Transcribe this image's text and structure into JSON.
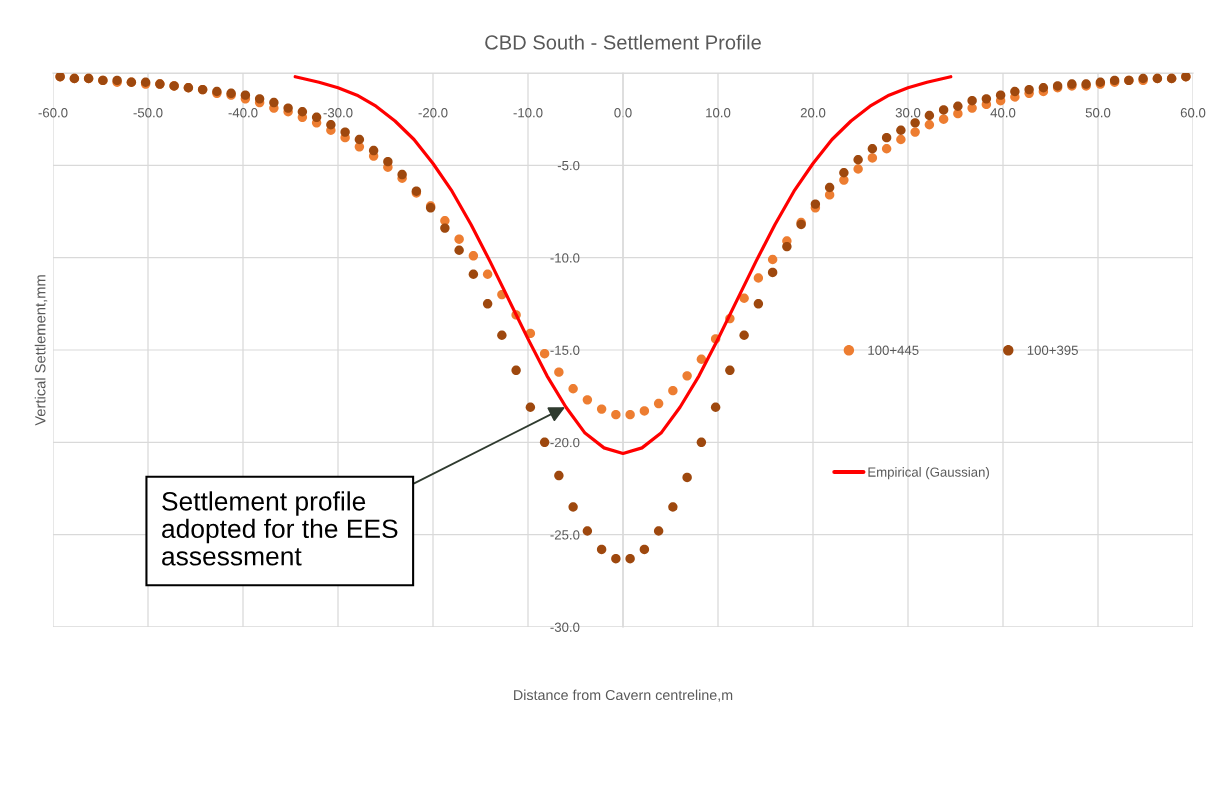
{
  "chart_data": {
    "type": "scatter",
    "title": "CBD South - Settlement Profile",
    "xlabel": "Distance from Cavern centreline,m",
    "ylabel": "Vertical Settlement,mm",
    "x": [
      -59.25,
      -57.75,
      -56.25,
      -54.75,
      -53.25,
      -51.75,
      -50.25,
      -48.75,
      -47.25,
      -45.75,
      -44.25,
      -42.75,
      -41.25,
      -39.75,
      -38.25,
      -36.75,
      -35.25,
      -33.75,
      -32.25,
      -30.75,
      -29.25,
      -27.75,
      -26.25,
      -24.75,
      -23.25,
      -21.75,
      -20.25,
      -18.75,
      -17.25,
      -15.75,
      -14.25,
      -12.75,
      -11.25,
      -9.75,
      -8.25,
      -6.75,
      -5.25,
      -3.75,
      -2.25,
      -0.75,
      0.75,
      2.25,
      3.75,
      5.25,
      6.75,
      8.25,
      9.75,
      11.25,
      12.75,
      14.25,
      15.75,
      17.25,
      18.75,
      20.25,
      21.75,
      23.25,
      24.75,
      26.25,
      27.75,
      29.25,
      30.75,
      32.25,
      33.75,
      35.25,
      36.75,
      38.25,
      39.75,
      41.25,
      42.75,
      44.25,
      45.75,
      47.25,
      48.75,
      50.25,
      51.75,
      53.25,
      54.75,
      56.25,
      57.75,
      59.25
    ],
    "series": [
      {
        "name": "100+445",
        "color": "#ED7D31",
        "values": [
          -0.2,
          -0.3,
          -0.3,
          -0.4,
          -0.5,
          -0.5,
          -0.6,
          -0.6,
          -0.7,
          -0.8,
          -0.9,
          -1.1,
          -1.2,
          -1.4,
          -1.6,
          -1.9,
          -2.1,
          -2.4,
          -2.7,
          -3.1,
          -3.5,
          -4.0,
          -4.5,
          -5.1,
          -5.7,
          -6.5,
          -7.2,
          -8.0,
          -9.0,
          -9.9,
          -10.9,
          -12.0,
          -13.1,
          -14.1,
          -15.2,
          -16.2,
          -17.1,
          -17.7,
          -18.2,
          -18.5,
          -18.5,
          -18.3,
          -17.9,
          -17.2,
          -16.4,
          -15.5,
          -14.4,
          -13.3,
          -12.2,
          -11.1,
          -10.1,
          -9.1,
          -8.1,
          -7.3,
          -6.6,
          -5.8,
          -5.2,
          -4.6,
          -4.1,
          -3.6,
          -3.2,
          -2.8,
          -2.5,
          -2.2,
          -1.9,
          -1.7,
          -1.5,
          -1.3,
          -1.1,
          -1.0,
          -0.8,
          -0.7,
          -0.7,
          -0.6,
          -0.5,
          -0.4,
          -0.4,
          -0.3,
          -0.3,
          -0.2
        ]
      },
      {
        "name": "100+395",
        "color": "#9E480E",
        "values": [
          -0.2,
          -0.3,
          -0.3,
          -0.4,
          -0.4,
          -0.5,
          -0.5,
          -0.6,
          -0.7,
          -0.8,
          -0.9,
          -1.0,
          -1.1,
          -1.2,
          -1.4,
          -1.6,
          -1.9,
          -2.1,
          -2.4,
          -2.8,
          -3.2,
          -3.6,
          -4.2,
          -4.8,
          -5.5,
          -6.4,
          -7.3,
          -8.4,
          -9.6,
          -10.9,
          -12.5,
          -14.2,
          -16.1,
          -18.1,
          -20.0,
          -21.8,
          -23.5,
          -24.8,
          -25.8,
          -26.3,
          -26.3,
          -25.8,
          -24.8,
          -23.5,
          -21.9,
          -20.0,
          -18.1,
          -16.1,
          -14.2,
          -12.5,
          -10.8,
          -9.4,
          -8.2,
          -7.1,
          -6.2,
          -5.4,
          -4.7,
          -4.1,
          -3.5,
          -3.1,
          -2.7,
          -2.3,
          -2.0,
          -1.8,
          -1.5,
          -1.4,
          -1.2,
          -1.0,
          -0.9,
          -0.8,
          -0.7,
          -0.6,
          -0.6,
          -0.5,
          -0.4,
          -0.4,
          -0.3,
          -0.3,
          -0.3,
          -0.2
        ]
      },
      {
        "name": "Empirical (Gaussian)",
        "type": "line",
        "color": "#FF0000",
        "marker": "none",
        "line_style": "solid",
        "x": [
          -34.5,
          -32,
          -30,
          -28,
          -26,
          -24,
          -22,
          -20,
          -18,
          -16,
          -14,
          -12,
          -10,
          -8,
          -6,
          -4,
          -2,
          0,
          2,
          4,
          6,
          8,
          10,
          12,
          14,
          16,
          18,
          20,
          22,
          24,
          26,
          28,
          30,
          32,
          34.5
        ],
        "values": [
          -0.2,
          -0.5,
          -0.8,
          -1.2,
          -1.8,
          -2.6,
          -3.6,
          -4.9,
          -6.4,
          -8.2,
          -10.2,
          -12.3,
          -14.4,
          -16.4,
          -18.1,
          -19.5,
          -20.3,
          -20.6,
          -20.3,
          -19.5,
          -18.1,
          -16.4,
          -14.4,
          -12.3,
          -10.2,
          -8.2,
          -6.4,
          -4.9,
          -3.6,
          -2.6,
          -1.8,
          -1.2,
          -0.8,
          -0.5,
          -0.2
        ]
      }
    ],
    "marker": "circle",
    "xlim": [
      -60,
      60
    ],
    "ylim": [
      -30,
      0
    ],
    "xticks": [
      {
        "value": -60,
        "label": "-60.0"
      },
      {
        "value": -50,
        "label": "-50.0"
      },
      {
        "value": -40,
        "label": "-40.0"
      },
      {
        "value": -30,
        "label": "-30.0"
      },
      {
        "value": -20,
        "label": "-20.0"
      },
      {
        "value": -10,
        "label": "-10.0"
      },
      {
        "value": 0,
        "label": "0.0"
      },
      {
        "value": 10,
        "label": "10.0"
      },
      {
        "value": 20,
        "label": "20.0"
      },
      {
        "value": 30,
        "label": "30.0"
      },
      {
        "value": 40,
        "label": "40.0"
      },
      {
        "value": 50,
        "label": "50.0"
      },
      {
        "value": 60,
        "label": "60.0"
      }
    ],
    "yticks": [
      {
        "value": -30,
        "label": "-30.0"
      },
      {
        "value": -25,
        "label": "-25.0"
      },
      {
        "value": -20,
        "label": "-20.0"
      },
      {
        "value": -15,
        "label": "-15.0"
      },
      {
        "value": -10,
        "label": "-10.0"
      },
      {
        "value": -5,
        "label": "-5.0"
      },
      {
        "value": 0,
        "label": null
      }
    ],
    "grid": true,
    "legend": "right",
    "annotations": [
      {
        "text": "Settlement profile\nadopted for the EES\nassessment",
        "x": -6.1,
        "y": -18.1
      }
    ]
  }
}
